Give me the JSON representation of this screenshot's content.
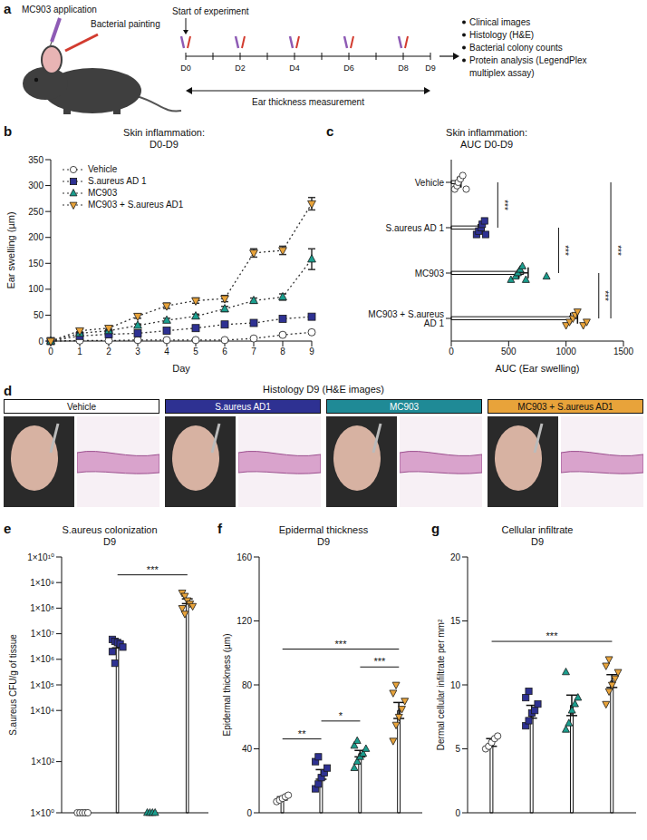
{
  "schematic": {
    "panel": "a",
    "top_labels": [
      "MC903 application",
      "Bacterial painting"
    ],
    "start_label": "Start of experiment",
    "days": [
      "D0",
      "D2",
      "D4",
      "D6",
      "D8",
      "D9"
    ],
    "span_label": "Ear thickness measurement",
    "readouts": [
      "Clinical images",
      "Histology (H&E)",
      "Bacterial colony counts",
      "Protein analysis (LegendPlex multiplex assay)"
    ]
  },
  "histology": {
    "panel": "d",
    "title": "Histology D9 (H&E images)",
    "groups": [
      {
        "name": "Vehicle",
        "color": "#ffffff"
      },
      {
        "name": "S.aureus AD1",
        "color": "#2e3192"
      },
      {
        "name": "MC903",
        "color": "#1f8a96"
      },
      {
        "name": "MC903 + S.aureus AD1",
        "color": "#e8a33a"
      }
    ]
  },
  "chart_data": [
    {
      "panel": "b",
      "type": "line",
      "title": "Skin inflammation:",
      "subtitle": "D0-D9",
      "x_label": "Day",
      "y_label": "Ear swelling (µm)",
      "x": [
        0,
        1,
        2,
        3,
        4,
        5,
        6,
        7,
        8,
        9
      ],
      "xlim": [
        0,
        9
      ],
      "xticks": [
        0,
        1,
        2,
        3,
        4,
        5,
        6,
        7,
        8,
        9
      ],
      "ylim": [
        0,
        350
      ],
      "yticks": [
        0,
        50,
        100,
        150,
        200,
        250,
        300,
        350
      ],
      "line_style": "dotted",
      "legend": "top-left",
      "series": [
        {
          "name": "Vehicle",
          "color": "#ffffff",
          "marker": "circle",
          "values": [
            0,
            1,
            1,
            2,
            2,
            2,
            2,
            5,
            12,
            17
          ],
          "errors": [
            0,
            1,
            1,
            1,
            1,
            1,
            1,
            2,
            3,
            3
          ]
        },
        {
          "name": "S.aureus AD 1",
          "color": "#2e3192",
          "marker": "square",
          "values": [
            0,
            10,
            13,
            15,
            20,
            25,
            32,
            35,
            43,
            47
          ],
          "errors": [
            0,
            2,
            2,
            2,
            3,
            3,
            3,
            3,
            4,
            4
          ]
        },
        {
          "name": "MC903",
          "color": "#1b9e8e",
          "marker": "triangle",
          "values": [
            0,
            15,
            20,
            30,
            40,
            48,
            62,
            78,
            85,
            158
          ],
          "errors": [
            0,
            2,
            3,
            3,
            4,
            4,
            5,
            5,
            6,
            20
          ]
        },
        {
          "name": "MC903 + S.aureus AD1",
          "color": "#e8a33a",
          "marker": "triangle-down",
          "values": [
            0,
            20,
            25,
            48,
            68,
            78,
            82,
            170,
            175,
            265
          ],
          "errors": [
            0,
            3,
            3,
            4,
            5,
            5,
            6,
            8,
            8,
            12
          ]
        }
      ]
    },
    {
      "panel": "c",
      "type": "bar",
      "orientation": "horizontal",
      "title": "Skin inflammation:",
      "subtitle": "AUC D0-D9",
      "x_label": "AUC (Ear swelling)",
      "categories": [
        "MC903 + S.aureus AD 1",
        "MC903",
        "S.aureus AD 1",
        "Vehicle"
      ],
      "values": [
        1070,
        630,
        270,
        70
      ],
      "errors": [
        30,
        40,
        15,
        15
      ],
      "color": "#ffffff",
      "xlim": [
        0,
        1500
      ],
      "xticks": [
        0,
        500,
        1000,
        1500
      ],
      "points": [
        {
          "color": "#e8a33a",
          "marker": "triangle-down",
          "values": [
            1000,
            1030,
            1060,
            1080,
            1100,
            1150,
            1180
          ]
        },
        {
          "color": "#1b9e8e",
          "marker": "triangle",
          "values": [
            520,
            560,
            580,
            600,
            620,
            650,
            830
          ]
        },
        {
          "color": "#2e3192",
          "marker": "square",
          "values": [
            220,
            240,
            260,
            270,
            290,
            300
          ]
        },
        {
          "color": "#ffffff",
          "marker": "circle",
          "values": [
            30,
            50,
            60,
            80,
            100,
            130
          ]
        }
      ],
      "annotations": [
        {
          "from": 3,
          "to": 2,
          "text": "***"
        },
        {
          "from": 2,
          "to": 1,
          "text": "***"
        },
        {
          "from": 1,
          "to": 0,
          "text": "***"
        },
        {
          "from": 3,
          "to": 0,
          "text": "***"
        }
      ]
    },
    {
      "panel": "e",
      "type": "bar",
      "title": "S.aureus colonization",
      "subtitle": "D9",
      "y_label": "S.aureus CFU/g of tissue",
      "log": "y",
      "tick_labels": "y",
      "categories": [
        null,
        null,
        null,
        null
      ],
      "values": [
        1,
        3600000,
        1,
        190000000
      ],
      "errors": [
        0,
        800000,
        0,
        40000000
      ],
      "color": "#ffffff",
      "ylim": [
        1,
        10000000000
      ],
      "yticks": [
        {
          "value": 1,
          "label": "1×10⁰"
        },
        {
          "value": 100,
          "label": "1×10²"
        },
        {
          "value": 10000,
          "label": "1×10⁴"
        },
        {
          "value": 100000,
          "label": "1×10⁵"
        },
        {
          "value": 1000000,
          "label": "1×10⁶"
        },
        {
          "value": 10000000,
          "label": "1×10⁷"
        },
        {
          "value": 100000000,
          "label": "1×10⁸"
        },
        {
          "value": 1000000000,
          "label": "1×10⁹"
        },
        {
          "value": 10000000000,
          "label": "1×10¹⁰"
        }
      ],
      "points": [
        {
          "color": "#ffffff",
          "marker": "circle",
          "values": [
            1,
            1,
            1,
            1,
            1
          ]
        },
        {
          "color": "#2e3192",
          "marker": "square",
          "values": [
            6000000,
            5000000,
            4500000,
            4000000,
            3000000,
            2000000,
            700000
          ]
        },
        {
          "color": "#1b9e8e",
          "marker": "triangle",
          "values": [
            1,
            1,
            1,
            1
          ]
        },
        {
          "color": "#e8a33a",
          "marker": "triangle-down",
          "values": [
            400000000,
            300000000,
            200000000,
            150000000,
            120000000,
            100000000,
            60000000
          ]
        }
      ],
      "annotations": [
        {
          "from": 1,
          "to": 3,
          "text": "***"
        }
      ]
    },
    {
      "panel": "f",
      "type": "bar",
      "title": "Epidermal thickness",
      "subtitle": "D9",
      "y_label": "Epidermal thickness (µm)",
      "tick_labels": "y",
      "categories": [
        null,
        null,
        null,
        null
      ],
      "values": [
        9,
        24,
        37,
        64
      ],
      "errors": [
        1,
        3,
        2,
        5
      ],
      "color": "#ffffff",
      "ylim": [
        0,
        160
      ],
      "yticks": [
        0,
        40,
        80,
        120,
        160
      ],
      "points": [
        {
          "color": "#ffffff",
          "marker": "circle",
          "values": [
            7,
            8,
            9,
            10,
            11
          ]
        },
        {
          "color": "#2e3192",
          "marker": "square",
          "values": [
            15,
            18,
            22,
            25,
            28,
            32,
            35
          ]
        },
        {
          "color": "#1b9e8e",
          "marker": "triangle",
          "values": [
            28,
            32,
            35,
            37,
            40,
            42,
            45
          ]
        },
        {
          "color": "#e8a33a",
          "marker": "triangle-down",
          "values": [
            45,
            55,
            60,
            65,
            70,
            75,
            80
          ]
        }
      ],
      "annotations": [
        {
          "from": 0,
          "to": 1,
          "text": "**"
        },
        {
          "from": 1,
          "to": 2,
          "text": "*"
        },
        {
          "from": 2,
          "to": 3,
          "text": "***"
        },
        {
          "from": 0,
          "to": 3,
          "text": "***"
        }
      ]
    },
    {
      "panel": "g",
      "type": "bar",
      "title": "Cellular infiltrate",
      "subtitle": "D9",
      "y_label": "Dermal cellular infiltrate per mm²",
      "tick_labels": "y",
      "categories": [
        null,
        null,
        null,
        null
      ],
      "values": [
        5.5,
        7.9,
        8.4,
        10.3
      ],
      "errors": [
        0.3,
        0.5,
        0.8,
        0.5
      ],
      "color": "#ffffff",
      "ylim": [
        0,
        20
      ],
      "yticks": [
        0,
        5,
        10,
        15,
        20
      ],
      "points": [
        {
          "color": "#ffffff",
          "marker": "circle",
          "values": [
            5,
            5.2,
            5.5,
            5.8,
            6
          ]
        },
        {
          "color": "#2e3192",
          "marker": "square",
          "values": [
            6.8,
            7.2,
            7.8,
            8,
            8.5,
            9,
            9.5
          ]
        },
        {
          "color": "#1b9e8e",
          "marker": "triangle",
          "values": [
            6.5,
            7,
            8,
            8.5,
            9,
            11
          ]
        },
        {
          "color": "#e8a33a",
          "marker": "triangle-down",
          "values": [
            8.5,
            9.5,
            10,
            10.5,
            11,
            11.5,
            12
          ]
        }
      ],
      "annotations": [
        {
          "from": 0,
          "to": 3,
          "text": "***"
        }
      ]
    }
  ]
}
